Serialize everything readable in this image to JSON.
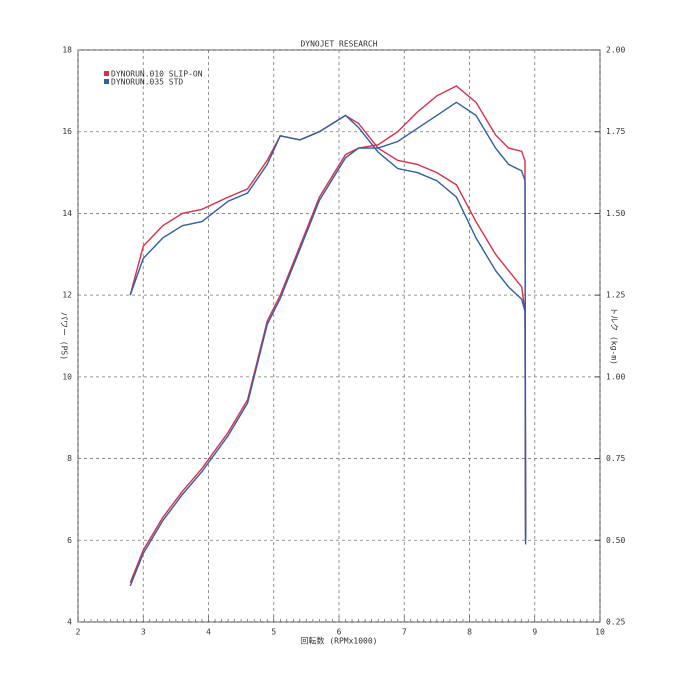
{
  "chart_data": {
    "type": "line",
    "title": "DYNOJET RESEARCH",
    "x_label": "回転数 (RPMx1000)",
    "y_label": "パワー (PS)",
    "y2_label": "トルク (kg-m)",
    "x": [
      2.8,
      3.0,
      3.3,
      3.6,
      3.9,
      4.3,
      4.6,
      4.9,
      5.1,
      5.4,
      5.7,
      6.1,
      6.3,
      6.6,
      6.9,
      7.2,
      7.5,
      7.8,
      8.1,
      8.4,
      8.6,
      8.8,
      8.85,
      8.86
    ],
    "series": [
      {
        "name": "DYNORUN.010 SLIP-ON",
        "color": "#d9304a",
        "values": [
          12.0,
          13.2,
          13.7,
          14.0,
          14.1,
          14.4,
          14.6,
          15.3,
          15.9,
          15.8,
          16.0,
          16.4,
          16.2,
          15.6,
          15.3,
          15.2,
          15.0,
          14.7,
          13.8,
          13.0,
          12.6,
          12.2,
          11.6,
          6.0
        ],
        "torque": [
          0.37,
          0.47,
          0.57,
          0.65,
          0.72,
          0.83,
          0.93,
          1.17,
          1.25,
          1.4,
          1.55,
          1.68,
          1.7,
          1.71,
          1.75,
          1.81,
          1.86,
          1.89,
          1.84,
          1.74,
          1.7,
          1.69,
          1.66,
          0.52
        ]
      },
      {
        "name": "DYNORUN.035 STD",
        "color": "#2f5fa8",
        "values": [
          12.0,
          12.9,
          13.4,
          13.7,
          13.8,
          14.3,
          14.5,
          15.2,
          15.9,
          15.8,
          16.0,
          16.4,
          16.1,
          15.5,
          15.1,
          15.0,
          14.8,
          14.4,
          13.4,
          12.6,
          12.2,
          11.9,
          11.6,
          5.9
        ],
        "torque": [
          0.36,
          0.46,
          0.56,
          0.64,
          0.71,
          0.82,
          0.92,
          1.16,
          1.24,
          1.39,
          1.54,
          1.67,
          1.7,
          1.7,
          1.72,
          1.76,
          1.8,
          1.84,
          1.8,
          1.7,
          1.65,
          1.63,
          1.6,
          0.5
        ]
      }
    ],
    "xlim": [
      2,
      10
    ],
    "xticks": [
      2,
      3,
      4,
      5,
      6,
      7,
      8,
      9,
      10
    ],
    "ylim": [
      4,
      18
    ],
    "yticks": [
      4,
      6,
      8,
      10,
      12,
      14,
      16,
      18
    ],
    "y2lim": [
      0.25,
      2.0
    ],
    "y2ticks": [
      0.25,
      {
        "value": 0.5,
        "label": "0.50"
      },
      0.75,
      {
        "value": 1.0,
        "label": "1.00"
      },
      1.25,
      {
        "value": 1.5,
        "label": "1.50"
      },
      1.75,
      {
        "value": 2.0,
        "label": "2.00"
      }
    ],
    "grid": true
  }
}
